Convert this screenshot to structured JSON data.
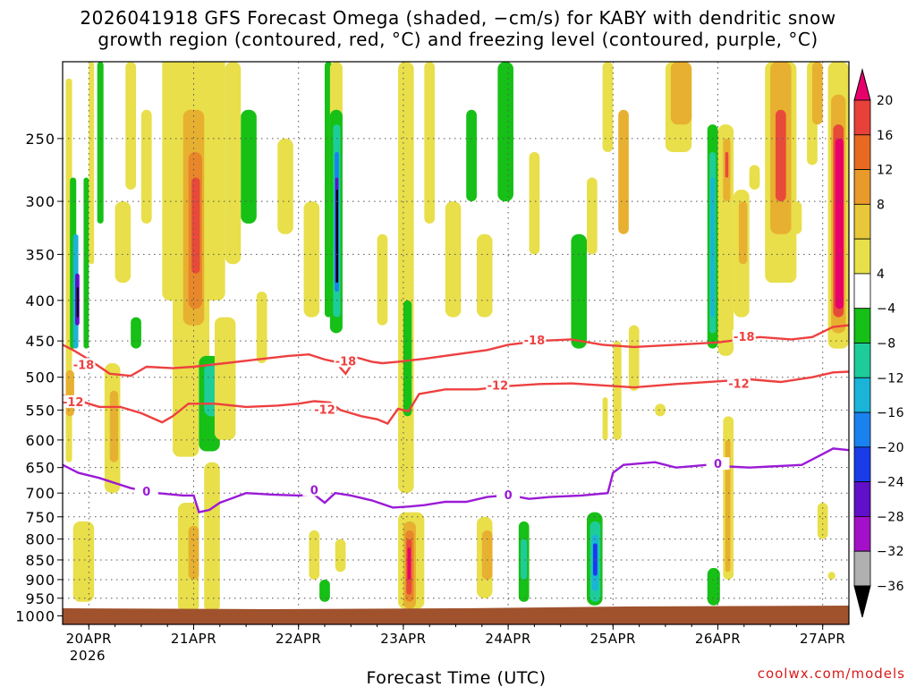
{
  "chart_data": {
    "type": "heatmap",
    "title_line1": "2026041918 GFS Forecast Omega (shaded, −cm/s) for KABY with dendritic snow",
    "title_line2": "growth region (contoured, red, °C) and freezing level (contoured, purple, °C)",
    "xlabel": "Forecast Time (UTC)",
    "x_tick_labels": [
      "20APR",
      "21APR",
      "22APR",
      "23APR",
      "24APR",
      "25APR",
      "26APR",
      "27APR"
    ],
    "x_year_label": "2026",
    "x_range_days": [
      19.75,
      27.25
    ],
    "y_axis": "pressure_hPa",
    "y_range_hPa": [
      1025,
      200
    ],
    "y_ticks": [
      250,
      300,
      350,
      400,
      450,
      500,
      550,
      600,
      650,
      700,
      750,
      800,
      850,
      900,
      950,
      1000
    ],
    "y_tick_labels": [
      "250",
      "300",
      "350",
      "400",
      "450",
      "500",
      "550",
      "600",
      "650",
      "700",
      "750",
      "800",
      "850",
      "900",
      "950",
      "1000"
    ],
    "colorbar": {
      "labels": [
        "20",
        "16",
        "12",
        "8",
        "4",
        "−4",
        "−8",
        "−12",
        "−16",
        "−20",
        "−24",
        "−28",
        "−32",
        "−36"
      ],
      "colors": [
        "#e8006a",
        "#e8413a",
        "#e86a20",
        "#e89a2a",
        "#e8c83a",
        "#e8e04a",
        "#ffffff",
        "#16c016",
        "#1ecc9a",
        "#1ab4d8",
        "#1a82ee",
        "#1a3ce8",
        "#6010c8",
        "#a410c8",
        "#b0b0b0",
        "#000000"
      ]
    },
    "contours": {
      "dgz_minus18": {
        "label": "-18",
        "color": "#ee4040",
        "points": [
          [
            19.75,
            455
          ],
          [
            19.85,
            462
          ],
          [
            20.0,
            475
          ],
          [
            20.2,
            495
          ],
          [
            20.4,
            498
          ],
          [
            20.55,
            485
          ],
          [
            20.8,
            487
          ],
          [
            21.0,
            485
          ],
          [
            21.3,
            480
          ],
          [
            21.6,
            475
          ],
          [
            21.9,
            470
          ],
          [
            22.1,
            468
          ],
          [
            22.25,
            475
          ],
          [
            22.35,
            478
          ],
          [
            22.45,
            495
          ],
          [
            22.55,
            472
          ],
          [
            22.7,
            478
          ],
          [
            22.8,
            480
          ],
          [
            22.95,
            478
          ],
          [
            23.2,
            474
          ],
          [
            23.5,
            468
          ],
          [
            23.8,
            462
          ],
          [
            24.0,
            455
          ],
          [
            24.3,
            450
          ],
          [
            24.6,
            448
          ],
          [
            24.9,
            455
          ],
          [
            25.2,
            458
          ],
          [
            25.6,
            455
          ],
          [
            26.0,
            452
          ],
          [
            26.4,
            445
          ],
          [
            26.7,
            448
          ],
          [
            26.9,
            445
          ],
          [
            27.1,
            432
          ],
          [
            27.25,
            430
          ]
        ]
      },
      "dgz_minus12": {
        "label": "-12",
        "color": "#ee4040",
        "points": [
          [
            19.75,
            527
          ],
          [
            19.9,
            535
          ],
          [
            20.1,
            545
          ],
          [
            20.3,
            545
          ],
          [
            20.5,
            555
          ],
          [
            20.7,
            570
          ],
          [
            20.8,
            560
          ],
          [
            20.95,
            540
          ],
          [
            21.2,
            540
          ],
          [
            21.5,
            545
          ],
          [
            21.8,
            543
          ],
          [
            22.0,
            540
          ],
          [
            22.15,
            536
          ],
          [
            22.3,
            538
          ],
          [
            22.4,
            550
          ],
          [
            22.6,
            560
          ],
          [
            22.75,
            565
          ],
          [
            22.85,
            572
          ],
          [
            22.95,
            548
          ],
          [
            23.05,
            552
          ],
          [
            23.15,
            525
          ],
          [
            23.4,
            518
          ],
          [
            23.7,
            518
          ],
          [
            24.0,
            513
          ],
          [
            24.3,
            510
          ],
          [
            24.6,
            509
          ],
          [
            24.9,
            512
          ],
          [
            25.2,
            515
          ],
          [
            25.6,
            510
          ],
          [
            26.0,
            506
          ],
          [
            26.3,
            503
          ],
          [
            26.6,
            507
          ],
          [
            26.9,
            500
          ],
          [
            27.1,
            493
          ],
          [
            27.25,
            492
          ]
        ]
      },
      "freezing_level": {
        "label": "0",
        "color": "#9a1ad6",
        "points": [
          [
            19.75,
            645
          ],
          [
            19.9,
            660
          ],
          [
            20.1,
            670
          ],
          [
            20.4,
            690
          ],
          [
            20.65,
            700
          ],
          [
            20.9,
            705
          ],
          [
            21.0,
            705
          ],
          [
            21.05,
            740
          ],
          [
            21.15,
            735
          ],
          [
            21.25,
            720
          ],
          [
            21.5,
            700
          ],
          [
            21.75,
            703
          ],
          [
            22.0,
            705
          ],
          [
            22.15,
            703
          ],
          [
            22.25,
            720
          ],
          [
            22.35,
            700
          ],
          [
            22.5,
            705
          ],
          [
            22.7,
            715
          ],
          [
            22.9,
            730
          ],
          [
            23.05,
            728
          ],
          [
            23.2,
            725
          ],
          [
            23.4,
            718
          ],
          [
            23.6,
            718
          ],
          [
            23.8,
            708
          ],
          [
            24.0,
            704
          ],
          [
            24.2,
            712
          ],
          [
            24.4,
            708
          ],
          [
            24.7,
            705
          ],
          [
            24.95,
            700
          ],
          [
            25.0,
            660
          ],
          [
            25.1,
            645
          ],
          [
            25.4,
            640
          ],
          [
            25.6,
            650
          ],
          [
            25.9,
            645
          ],
          [
            26.1,
            648
          ],
          [
            26.3,
            650
          ],
          [
            26.5,
            648
          ],
          [
            26.8,
            645
          ],
          [
            27.0,
            625
          ],
          [
            27.1,
            615
          ],
          [
            27.25,
            618
          ]
        ]
      }
    }
  },
  "credit": "coolwx.com/models"
}
